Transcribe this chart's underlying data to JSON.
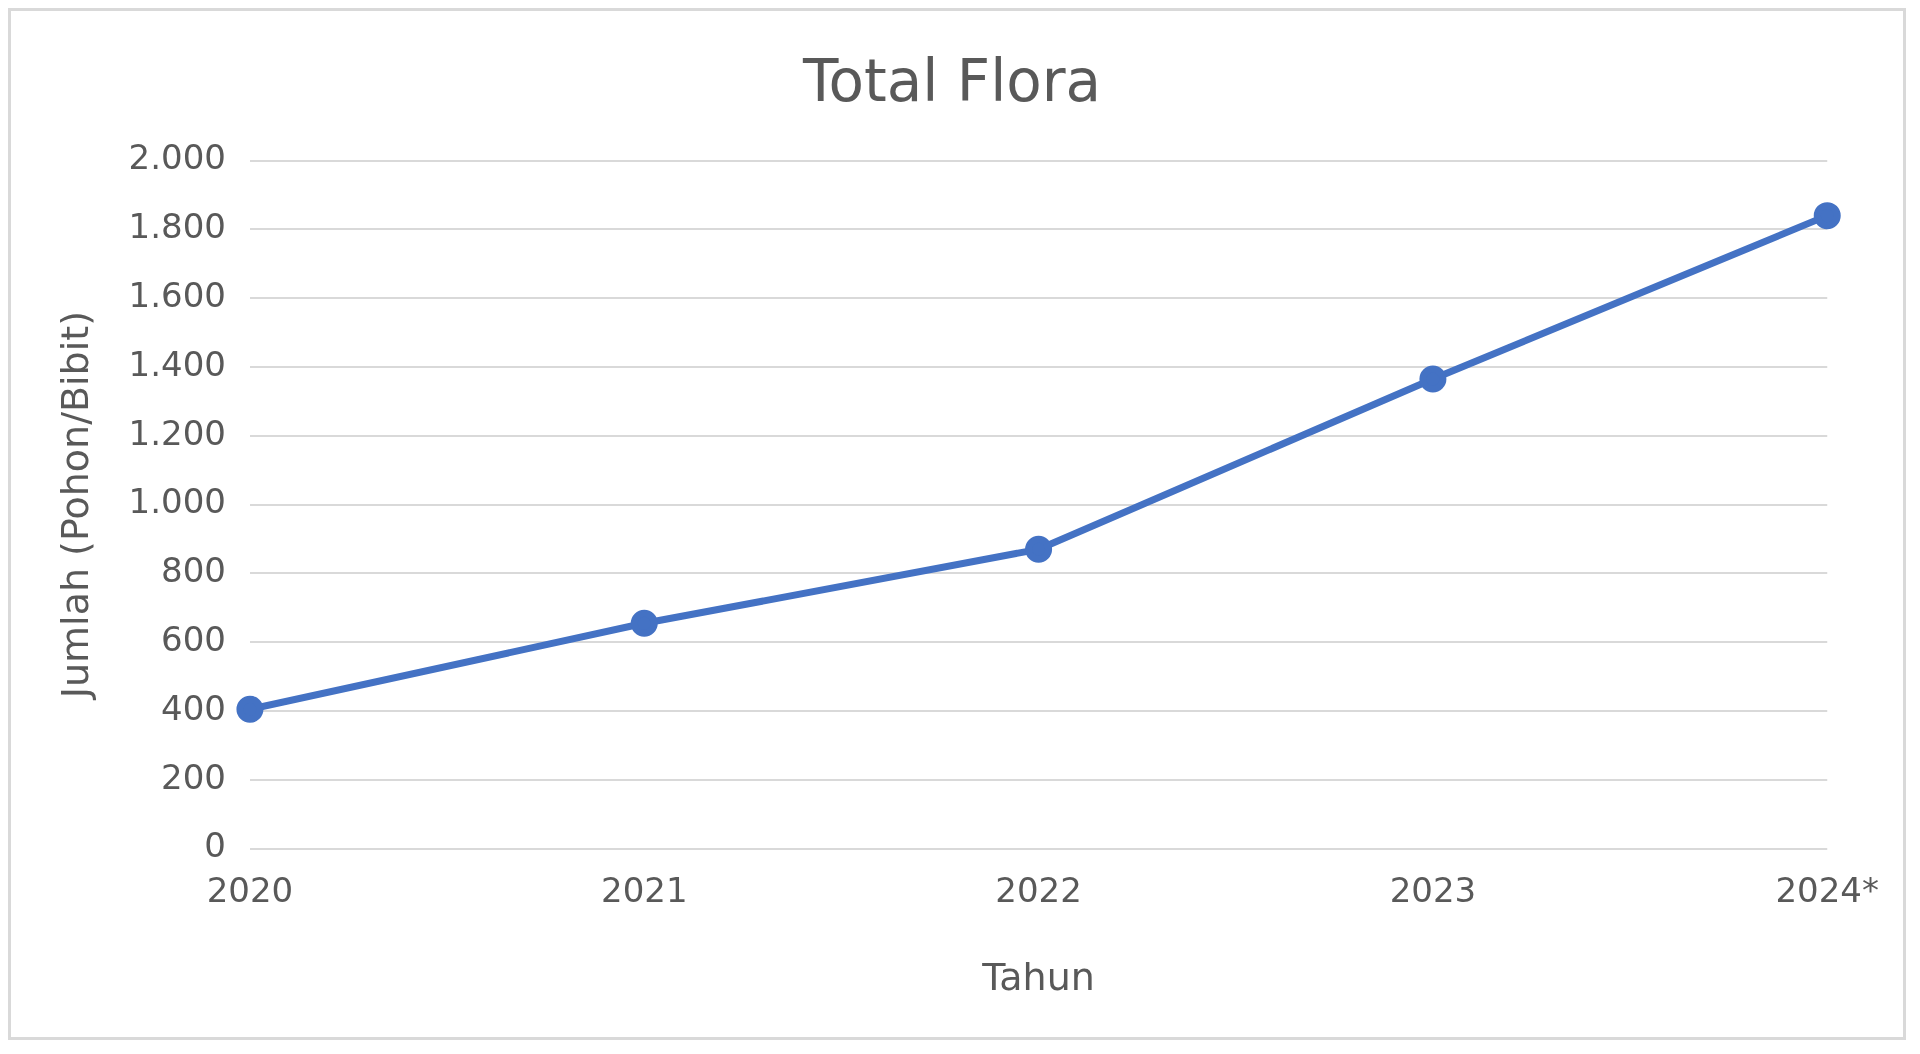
{
  "chart_data": {
    "type": "line",
    "title": "Total Flora",
    "xlabel": "Tahun",
    "ylabel": "Jumlah (Pohon/Bibit)",
    "categories": [
      "2020",
      "2021",
      "2022",
      "2023",
      "2024*"
    ],
    "series": [
      {
        "color": "#4472c4",
        "values": [
          405,
          655,
          870,
          1365,
          1840
        ]
      }
    ],
    "ylim": [
      0,
      2000
    ],
    "yticks": [
      0,
      200,
      400,
      600,
      800,
      {
        "value": 1000,
        "label": "1.000"
      },
      {
        "value": 1200,
        "label": "1.200"
      },
      {
        "value": 1400,
        "label": "1.400"
      },
      {
        "value": 1600,
        "label": "1.600"
      },
      {
        "value": 1800,
        "label": "1.800"
      },
      {
        "value": 2000,
        "label": "2.000"
      }
    ],
    "grid": "y",
    "legend": false,
    "marker": "circle",
    "line_style": "solid"
  }
}
